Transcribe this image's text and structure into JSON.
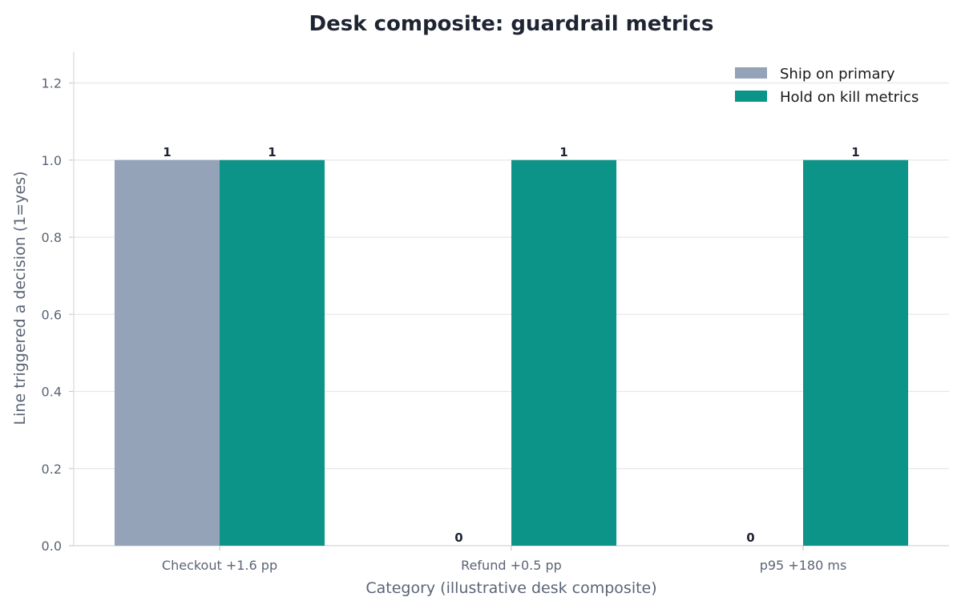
{
  "chart_data": {
    "type": "bar",
    "title": "Desk composite: guardrail metrics",
    "xlabel": "Category (illustrative desk composite)",
    "ylabel": "Line triggered a decision (1=yes)",
    "categories": [
      "Checkout +1.6 pp",
      "Refund +0.5 pp",
      "p95 +180 ms"
    ],
    "series": [
      {
        "name": "Ship on primary",
        "values": [
          1,
          0,
          0
        ],
        "color": "#94a3b8"
      },
      {
        "name": "Hold on kill metrics",
        "values": [
          1,
          1,
          1
        ],
        "color": "#0d9488"
      }
    ],
    "ylim": [
      0,
      1.28
    ],
    "yticks": [
      "0.0",
      "0.2",
      "0.4",
      "0.6",
      "0.8",
      "1.0",
      "1.2"
    ],
    "grid": true,
    "legend_position": "top-right"
  }
}
